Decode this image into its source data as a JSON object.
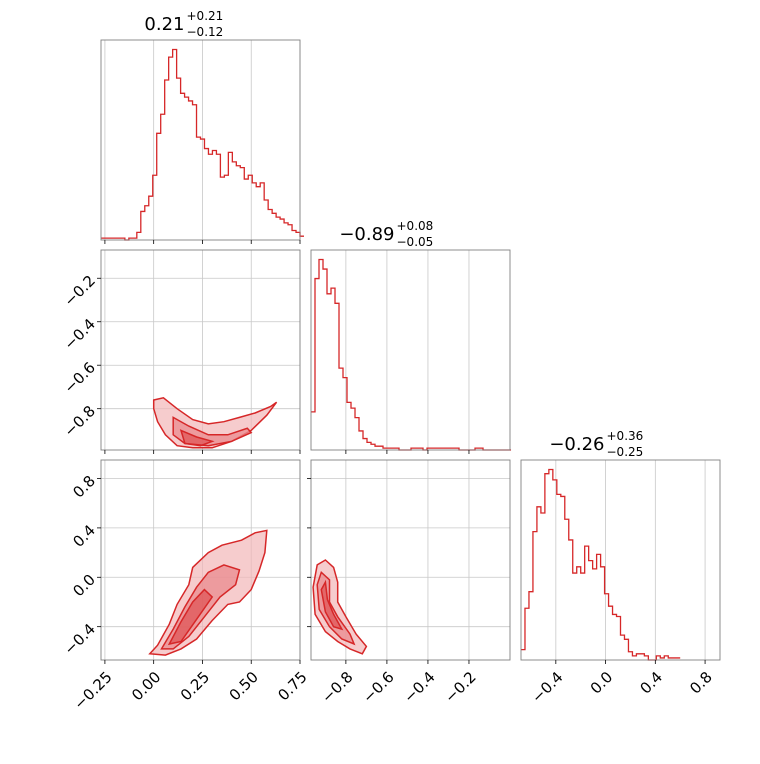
{
  "colors": {
    "line": "#d62728",
    "fill_light": "#f2b7b8",
    "fill_mid": "#e98b8d",
    "grid": "#c8c8c8",
    "frame": "#808080"
  },
  "chart_data": [
    {
      "type": "histogram",
      "panel": "diag-0",
      "title": {
        "main": "0.21",
        "plus": "+0.21",
        "minus": "−0.12"
      },
      "xlim": [
        -0.27,
        0.75
      ],
      "grid_x": [
        -0.25,
        0.0,
        0.25,
        0.5,
        0.75
      ],
      "bins": {
        "start": -0.27,
        "width": 0.0204,
        "counts": [
          1,
          1,
          1,
          1,
          1,
          1,
          0,
          1,
          1,
          4,
          15,
          18,
          23,
          34,
          56,
          66,
          84,
          96,
          100,
          85,
          77,
          75,
          73,
          71,
          54,
          53,
          48,
          45,
          47,
          45,
          33,
          34,
          46,
          41,
          39,
          38,
          32,
          34,
          30,
          28,
          30,
          21,
          16,
          14,
          12,
          11,
          9,
          8,
          5,
          4,
          2
        ]
      }
    },
    {
      "type": "histogram",
      "panel": "diag-1",
      "title": {
        "main": "−0.89",
        "plus": "+0.08",
        "minus": "−0.05"
      },
      "xlim": [
        -0.97,
        0.0
      ],
      "grid_x": [
        -0.8,
        -0.6,
        -0.4,
        -0.2
      ],
      "bins": {
        "start": -0.97,
        "width": 0.0195,
        "counts": [
          20,
          90,
          100,
          95,
          82,
          85,
          77,
          43,
          38,
          25,
          22,
          17,
          10,
          6,
          4,
          3,
          2,
          2,
          1,
          1,
          1,
          1,
          0,
          0,
          0,
          1,
          1,
          1,
          0,
          1,
          1,
          1,
          1,
          1,
          1,
          1,
          1,
          0,
          0,
          0,
          0,
          1,
          1,
          0,
          0,
          0,
          0,
          0,
          0,
          0
        ]
      }
    },
    {
      "type": "histogram",
      "panel": "diag-2",
      "title": {
        "main": "−0.26",
        "plus": "+0.36",
        "minus": "−0.25"
      },
      "xlim": [
        -0.68,
        0.92
      ],
      "grid_x": [
        -0.4,
        0.0,
        0.4,
        0.8
      ],
      "bins": {
        "start": -0.68,
        "width": 0.032,
        "counts": [
          5,
          25,
          33,
          62,
          74,
          71,
          90,
          92,
          87,
          80,
          79,
          68,
          58,
          42,
          45,
          42,
          55,
          48,
          44,
          51,
          45,
          32,
          26,
          22,
          21,
          12,
          10,
          4,
          2,
          3,
          3,
          2,
          0,
          0,
          2,
          1,
          2,
          1,
          1,
          1
        ]
      }
    },
    {
      "type": "contour",
      "panel": "cross-10",
      "x_param": 0,
      "y_param": 1,
      "xlim": [
        -0.27,
        0.75
      ],
      "ylim": [
        -0.99,
        -0.07
      ],
      "grid_x": [
        -0.25,
        0.0,
        0.25,
        0.5,
        0.75
      ],
      "grid_y": [
        -0.8,
        -0.6,
        -0.4,
        -0.2
      ],
      "y_tick_labels": [
        "−0.8",
        "−0.6",
        "−0.4",
        "−0.2"
      ],
      "outer_contour": [
        [
          0.0,
          -0.76
        ],
        [
          0.05,
          -0.75
        ],
        [
          0.12,
          -0.8
        ],
        [
          0.2,
          -0.85
        ],
        [
          0.28,
          -0.87
        ],
        [
          0.36,
          -0.86
        ],
        [
          0.44,
          -0.84
        ],
        [
          0.52,
          -0.82
        ],
        [
          0.6,
          -0.79
        ],
        [
          0.63,
          -0.77
        ],
        [
          0.58,
          -0.83
        ],
        [
          0.5,
          -0.9
        ],
        [
          0.4,
          -0.95
        ],
        [
          0.3,
          -0.98
        ],
        [
          0.2,
          -0.98
        ],
        [
          0.12,
          -0.97
        ],
        [
          0.06,
          -0.92
        ],
        [
          0.02,
          -0.86
        ],
        [
          0.0,
          -0.8
        ]
      ],
      "inner_contour": [
        [
          0.1,
          -0.84
        ],
        [
          0.18,
          -0.88
        ],
        [
          0.28,
          -0.92
        ],
        [
          0.38,
          -0.92
        ],
        [
          0.48,
          -0.89
        ],
        [
          0.5,
          -0.91
        ],
        [
          0.4,
          -0.95
        ],
        [
          0.28,
          -0.97
        ],
        [
          0.16,
          -0.96
        ],
        [
          0.1,
          -0.92
        ]
      ],
      "core_contour": [
        [
          0.14,
          -0.9
        ],
        [
          0.22,
          -0.93
        ],
        [
          0.3,
          -0.95
        ],
        [
          0.24,
          -0.97
        ],
        [
          0.16,
          -0.96
        ]
      ]
    },
    {
      "type": "contour",
      "panel": "cross-20",
      "x_param": 0,
      "y_param": 2,
      "xlim": [
        -0.27,
        0.75
      ],
      "ylim": [
        -0.67,
        0.95
      ],
      "grid_x": [
        -0.25,
        0.0,
        0.25,
        0.5,
        0.75
      ],
      "grid_y": [
        -0.4,
        0.0,
        0.4,
        0.8
      ],
      "y_tick_labels": [
        "−0.4",
        "0.0",
        "0.4",
        "0.8"
      ],
      "x_tick_labels": [
        "−0.25",
        "0.00",
        "0.25",
        "0.50",
        "0.75"
      ],
      "outer_contour": [
        [
          -0.02,
          -0.62
        ],
        [
          0.02,
          -0.55
        ],
        [
          0.08,
          -0.38
        ],
        [
          0.12,
          -0.22
        ],
        [
          0.18,
          -0.06
        ],
        [
          0.2,
          0.08
        ],
        [
          0.28,
          0.2
        ],
        [
          0.35,
          0.26
        ],
        [
          0.45,
          0.3
        ],
        [
          0.52,
          0.36
        ],
        [
          0.58,
          0.38
        ],
        [
          0.57,
          0.2
        ],
        [
          0.54,
          0.05
        ],
        [
          0.5,
          -0.1
        ],
        [
          0.44,
          -0.2
        ],
        [
          0.38,
          -0.22
        ],
        [
          0.3,
          -0.35
        ],
        [
          0.22,
          -0.5
        ],
        [
          0.14,
          -0.58
        ],
        [
          0.06,
          -0.63
        ]
      ],
      "inner_contour": [
        [
          0.04,
          -0.58
        ],
        [
          0.1,
          -0.42
        ],
        [
          0.16,
          -0.24
        ],
        [
          0.22,
          -0.08
        ],
        [
          0.28,
          0.04
        ],
        [
          0.36,
          0.1
        ],
        [
          0.44,
          0.06
        ],
        [
          0.42,
          -0.06
        ],
        [
          0.34,
          -0.16
        ],
        [
          0.26,
          -0.32
        ],
        [
          0.18,
          -0.48
        ],
        [
          0.1,
          -0.58
        ]
      ],
      "core_contour": [
        [
          0.08,
          -0.54
        ],
        [
          0.14,
          -0.36
        ],
        [
          0.2,
          -0.2
        ],
        [
          0.26,
          -0.1
        ],
        [
          0.3,
          -0.16
        ],
        [
          0.22,
          -0.34
        ],
        [
          0.14,
          -0.52
        ]
      ]
    },
    {
      "type": "contour",
      "panel": "cross-21",
      "x_param": 1,
      "y_param": 2,
      "xlim": [
        -0.97,
        0.0
      ],
      "ylim": [
        -0.67,
        0.95
      ],
      "grid_x": [
        -0.8,
        -0.6,
        -0.4,
        -0.2
      ],
      "grid_y": [
        -0.4,
        0.0,
        0.4,
        0.8
      ],
      "x_tick_labels": [
        "−0.8",
        "−0.6",
        "−0.4",
        "−0.2"
      ],
      "outer_contour": [
        [
          -0.96,
          -0.08
        ],
        [
          -0.94,
          0.1
        ],
        [
          -0.9,
          0.14
        ],
        [
          -0.86,
          0.08
        ],
        [
          -0.84,
          -0.04
        ],
        [
          -0.84,
          -0.2
        ],
        [
          -0.8,
          -0.32
        ],
        [
          -0.75,
          -0.46
        ],
        [
          -0.7,
          -0.56
        ],
        [
          -0.72,
          -0.62
        ],
        [
          -0.78,
          -0.58
        ],
        [
          -0.84,
          -0.52
        ],
        [
          -0.9,
          -0.44
        ],
        [
          -0.95,
          -0.3
        ]
      ],
      "inner_contour": [
        [
          -0.94,
          -0.06
        ],
        [
          -0.92,
          0.04
        ],
        [
          -0.88,
          -0.02
        ],
        [
          -0.88,
          -0.2
        ],
        [
          -0.84,
          -0.32
        ],
        [
          -0.78,
          -0.46
        ],
        [
          -0.76,
          -0.54
        ],
        [
          -0.82,
          -0.5
        ],
        [
          -0.88,
          -0.4
        ],
        [
          -0.93,
          -0.26
        ]
      ],
      "core_contour": [
        [
          -0.92,
          -0.1
        ],
        [
          -0.9,
          -0.04
        ],
        [
          -0.89,
          -0.18
        ],
        [
          -0.86,
          -0.3
        ],
        [
          -0.82,
          -0.42
        ],
        [
          -0.86,
          -0.4
        ],
        [
          -0.9,
          -0.28
        ]
      ]
    },
    {
      "type": "axis-labels",
      "panel": "diag-2",
      "x_tick_labels": [
        "−0.4",
        "0.0",
        "0.4",
        "0.8"
      ]
    }
  ]
}
